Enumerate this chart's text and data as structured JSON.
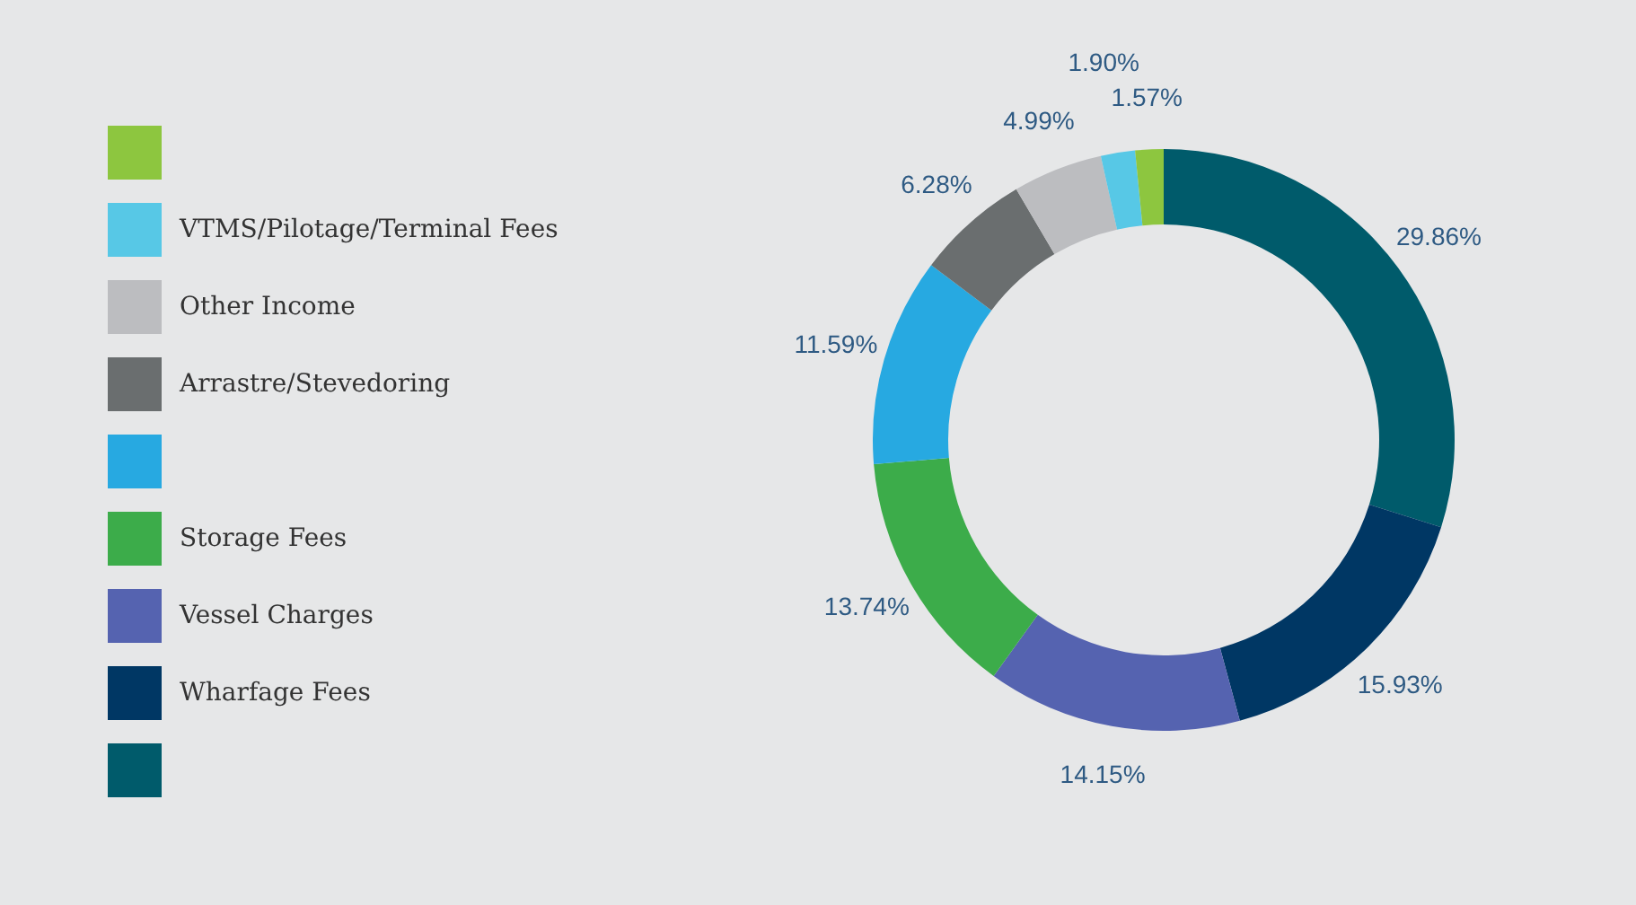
{
  "chart_data": {
    "type": "donut",
    "categories": [
      null,
      "Wharfage Fees",
      "Vessel Charges",
      "Storage Fees",
      null,
      "Arrastre/Stevedoring",
      "Other Income",
      "VTMS/Pilotage/Terminal Fees",
      null
    ],
    "values": [
      29.86,
      15.93,
      14.15,
      13.74,
      11.59,
      6.28,
      4.99,
      1.9,
      1.57
    ],
    "colors": [
      "#005b6b",
      "#003764",
      "#5563b0",
      "#3cac4a",
      "#27a9e1",
      "#6a6e6f",
      "#bcbdc0",
      "#57c8e6",
      "#8dc63f"
    ],
    "value_labels": [
      "29.86%",
      "15.93%",
      "14.15%",
      "13.74%",
      "11.59%",
      "6.28%",
      "4.99%",
      "1.90%",
      "1.57%"
    ],
    "legend": "left"
  }
}
